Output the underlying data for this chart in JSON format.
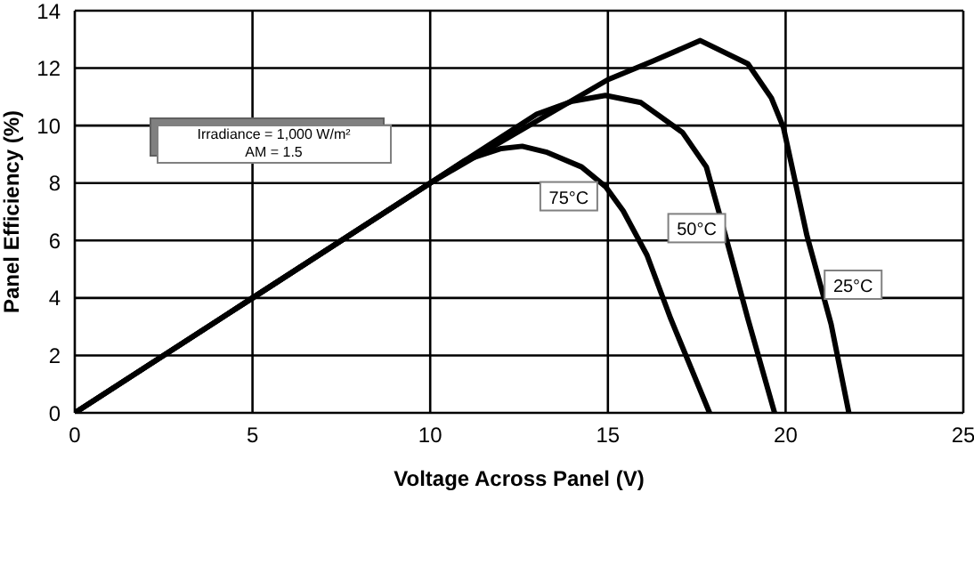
{
  "chart_data": {
    "type": "line",
    "xlabel": "Voltage Across Panel (V)",
    "ylabel": "Panel Efficiency (%)",
    "xlim": [
      0,
      25
    ],
    "xticks": [
      0,
      5,
      10,
      15,
      20,
      25
    ],
    "ylim": [
      0,
      14
    ],
    "yticks": [
      0,
      2,
      4,
      6,
      8,
      10,
      12,
      14
    ],
    "grid": true,
    "legend": false,
    "marker": "none",
    "line_style": "solid",
    "series": [
      {
        "color": "#000000",
        "x": [
          0,
          5,
          10,
          15,
          16.26,
          17.6,
          18.94,
          19.6,
          19.94,
          20.6,
          21.28,
          21.78
        ],
        "values": [
          0,
          4,
          8,
          11.6,
          12.24,
          12.96,
          12.15,
          10.96,
          9.93,
          6.17,
          3.09,
          0
        ]
      },
      {
        "color": "#000000",
        "x": [
          0,
          5,
          10,
          13,
          14,
          14.93,
          15.93,
          17.1,
          17.77,
          18.27,
          18.94,
          19.69
        ],
        "values": [
          0,
          4,
          8,
          10.4,
          10.85,
          11.05,
          10.8,
          9.76,
          8.56,
          6.34,
          3.27,
          0
        ]
      },
      {
        "color": "#000000",
        "x": [
          0,
          5,
          10,
          11,
          12,
          12.59,
          13.26,
          14.26,
          14.93,
          15.43,
          16.1,
          16.77,
          17.86
        ],
        "values": [
          0,
          4,
          8,
          8.8,
          9.2,
          9.28,
          9.08,
          8.56,
          7.88,
          7.03,
          5.49,
          3.27,
          0
        ]
      }
    ],
    "annotations": [
      "Irradiance = 1,000 W/m²",
      "AM = 1.5",
      {
        "text": "75°C",
        "x": 13.9,
        "y": 7.54
      },
      {
        "text": "50°C",
        "x": 17.5,
        "y": 6.43
      },
      {
        "text": "25°C",
        "x": 21.9,
        "y": 4.46
      }
    ]
  }
}
